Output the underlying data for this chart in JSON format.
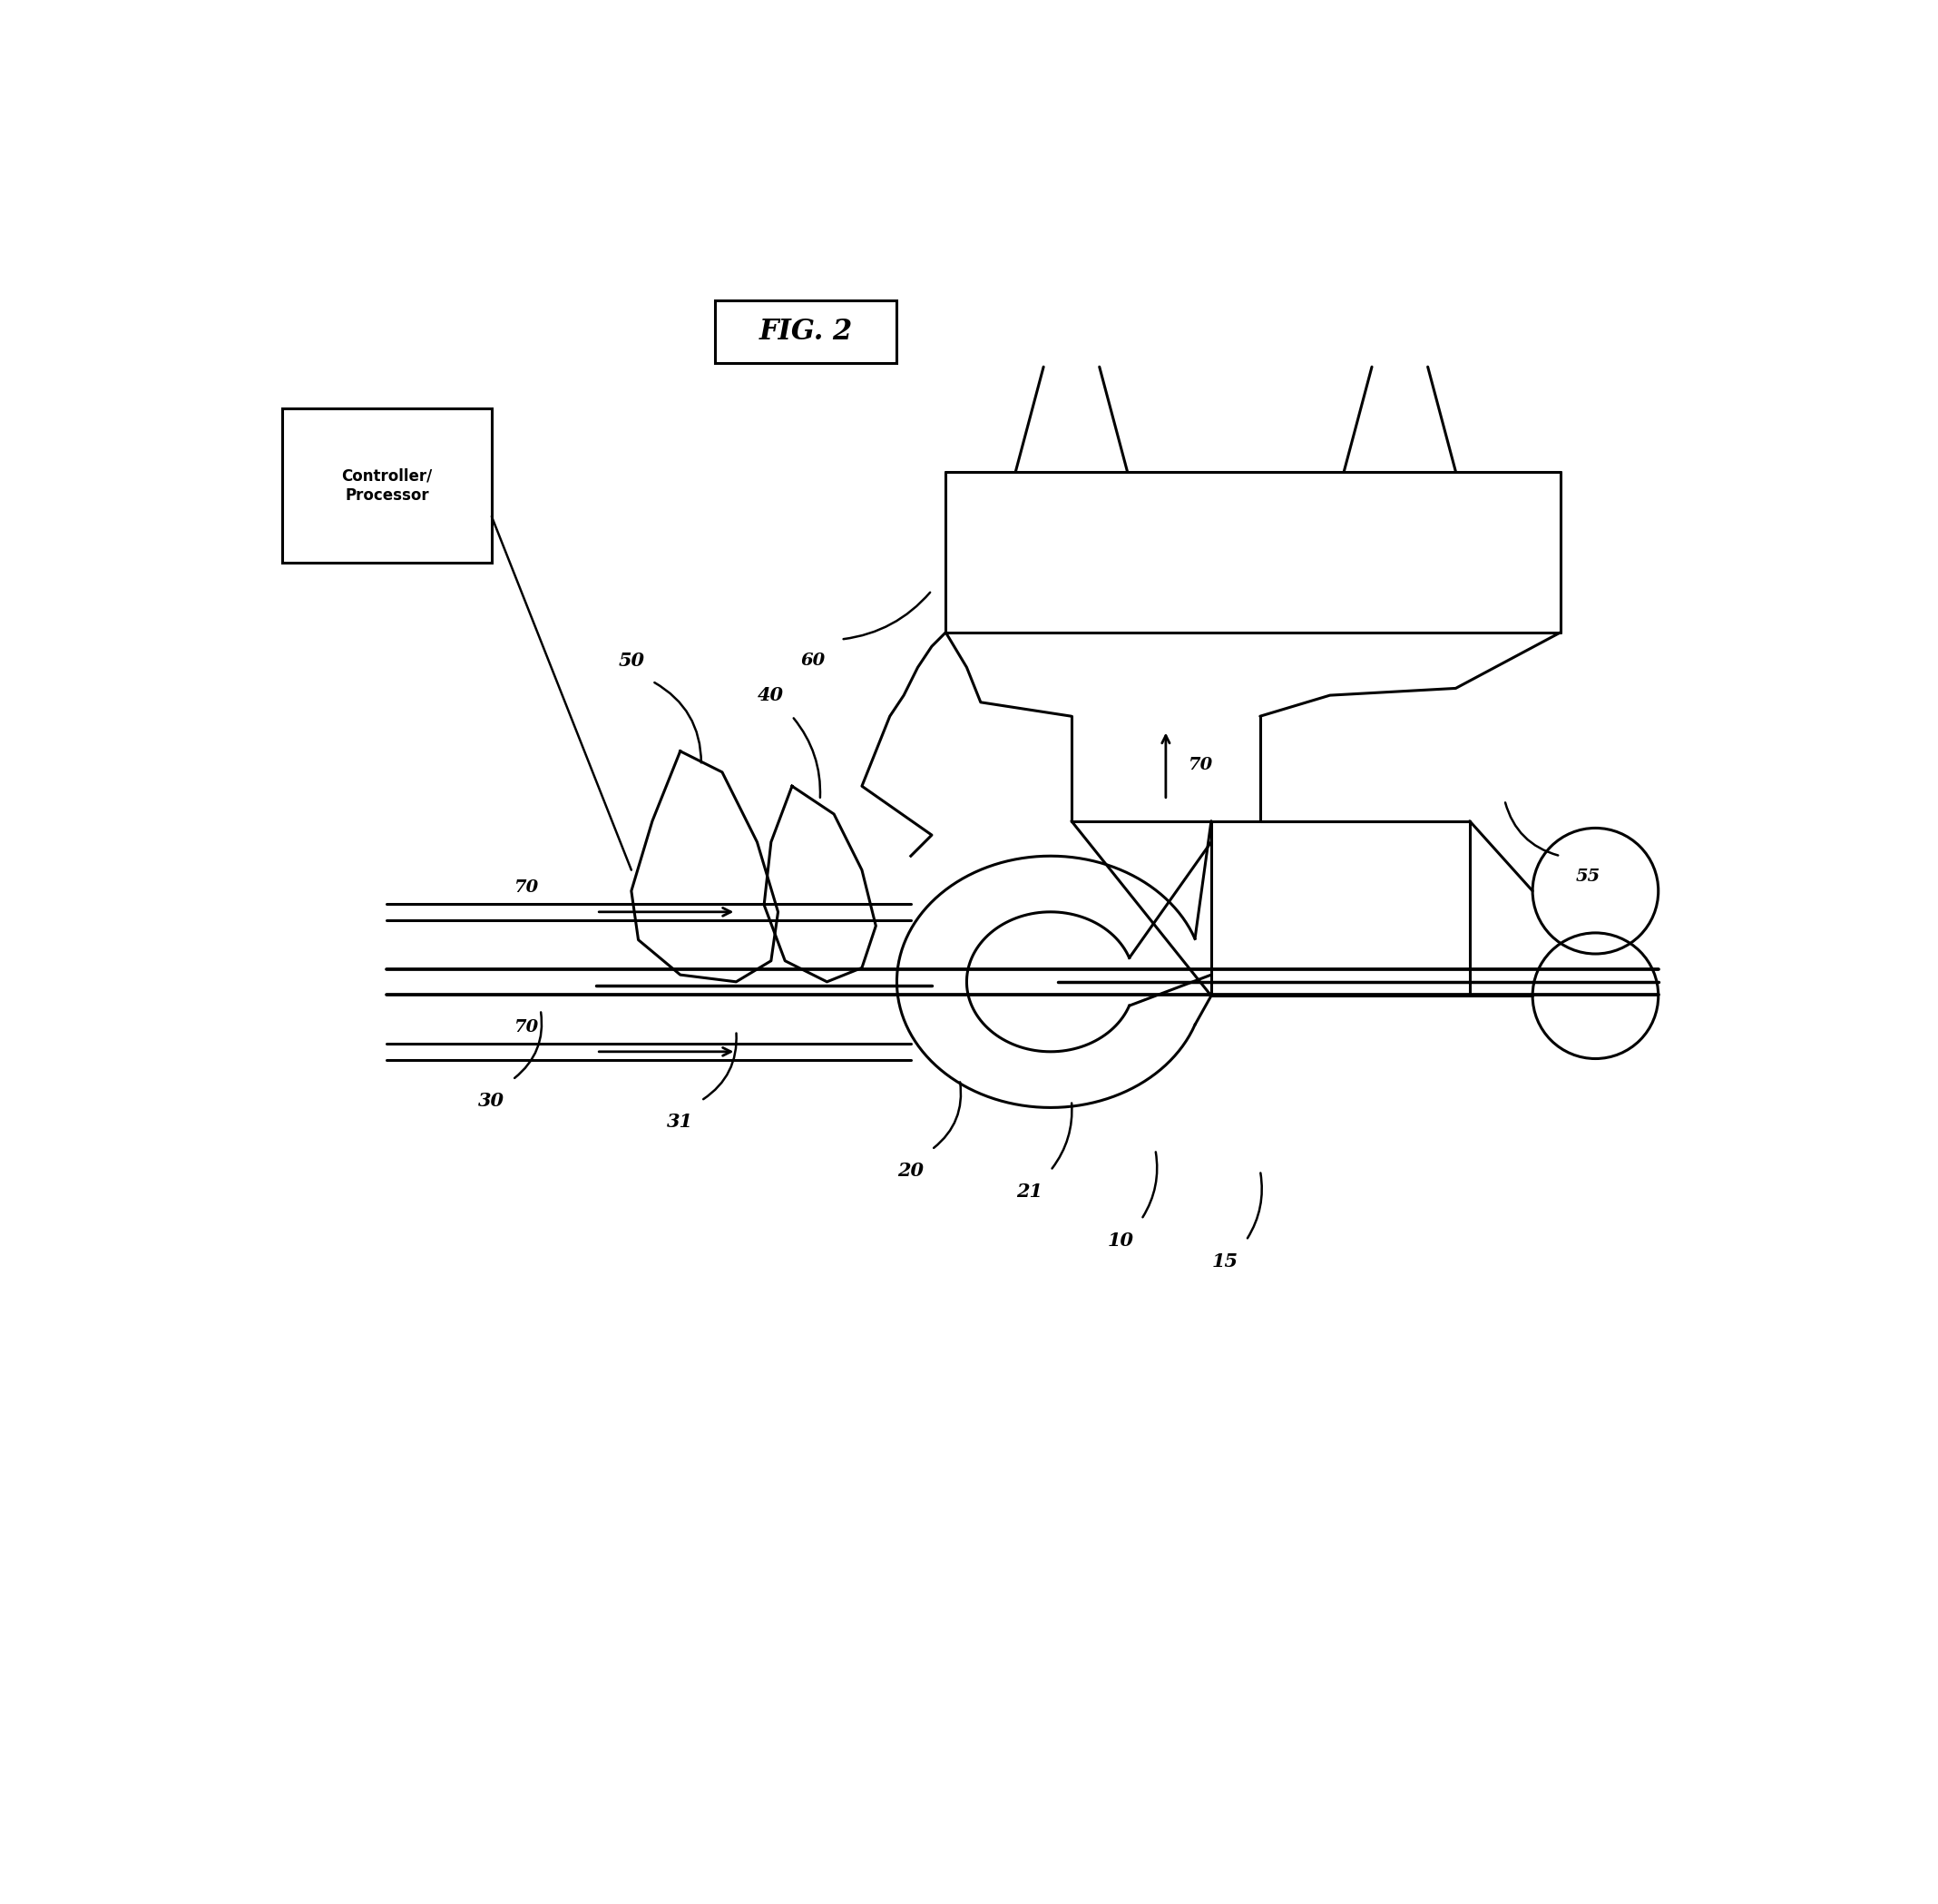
{
  "background_color": "#ffffff",
  "line_color": "#000000",
  "fig_width": 21.36,
  "fig_height": 20.98,
  "fig_title": "FIG. 2",
  "controller_text": "Controller/\nProcessor",
  "lw": 2.2
}
